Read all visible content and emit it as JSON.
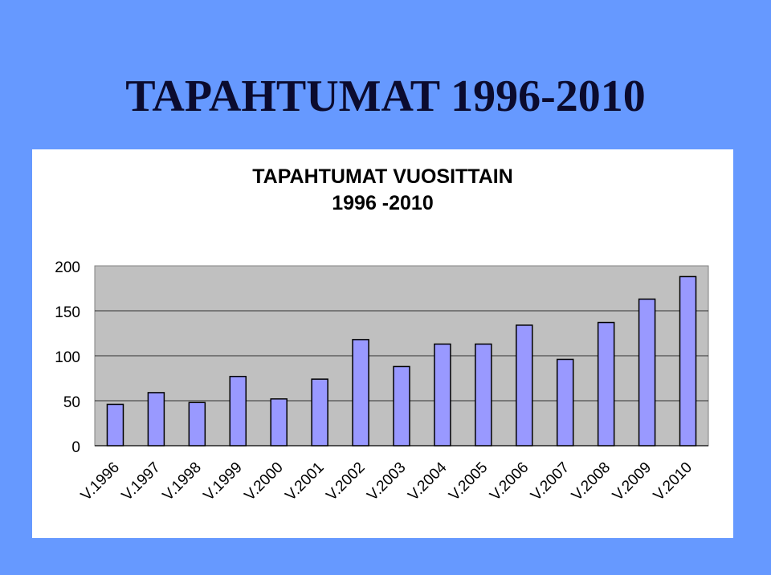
{
  "slide": {
    "title": "TAPAHTUMAT 1996-2010"
  },
  "colors": {
    "background": "#6699ff",
    "plot_area": "#c0c0c0",
    "bar_fill": "#9999ff",
    "bar_stroke": "#000000"
  },
  "chart_data": {
    "type": "bar",
    "title": "TAPAHTUMAT VUOSITTAIN",
    "subtitle": "1996 -2010",
    "xlabel": "",
    "ylabel": "",
    "categories": [
      "V.1996",
      "V.1997",
      "V.1998",
      "V.1999",
      "V.2000",
      "V.2001",
      "V.2002",
      "V.2003",
      "V.2004",
      "V.2005",
      "V.2006",
      "V.2007",
      "V.2008",
      "V.2009",
      "V.2010"
    ],
    "values": [
      46,
      59,
      48,
      77,
      52,
      74,
      118,
      88,
      113,
      113,
      134,
      96,
      137,
      163,
      188
    ],
    "ylim": [
      0,
      200
    ],
    "yticks": [
      0,
      50,
      100,
      150,
      200
    ],
    "grid": true,
    "legend": "none"
  }
}
